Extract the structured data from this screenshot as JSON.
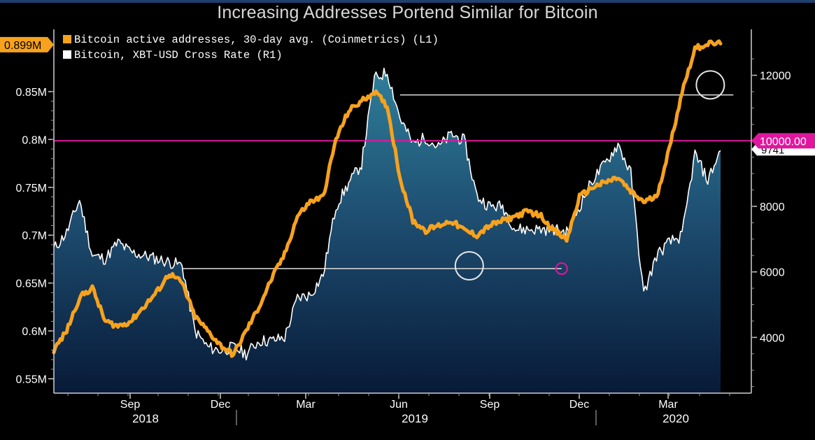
{
  "chart_data": {
    "type": "line",
    "title": "Increasing Addresses Portend Similar for Bitcoin",
    "categories_left_axis_label": "",
    "x_axis": {
      "month_ticks": [
        "Sep",
        "Dec",
        "Mar",
        "Jun",
        "Sep",
        "Dec",
        "Mar"
      ],
      "year_labels": [
        "2018",
        "2019",
        "2020"
      ]
    },
    "left_axis": {
      "ylim": [
        0.535,
        0.915
      ],
      "ticks": [
        "0.55M",
        "0.6M",
        "0.65M",
        "0.7M",
        "0.75M",
        "0.8M",
        "0.85M"
      ],
      "tick_values": [
        0.55,
        0.6,
        0.65,
        0.7,
        0.75,
        0.8,
        0.85
      ],
      "last_value_label": "0.899M"
    },
    "right_axis": {
      "ylim": [
        2300,
        13400
      ],
      "ticks": [
        "4000",
        "6000",
        "8000",
        "12000"
      ],
      "tick_values": [
        4000,
        6000,
        8000,
        12000
      ],
      "highlight_label": "10000.00",
      "last_value_label": "9741"
    },
    "series": [
      {
        "name": "Bitcoin active addresses, 30-day avg. (Coinmetrics) (L1)",
        "axis": "left",
        "color": "#f7a21d",
        "x": [
          0,
          0.5,
          1,
          1.5,
          2,
          2.5,
          3,
          3.5,
          4,
          4.5,
          5,
          5.5,
          6,
          6.5,
          7,
          7.5,
          8,
          8.5,
          9,
          9.5,
          10,
          10.5,
          11,
          11.5,
          12,
          12.5,
          13,
          13.5,
          14,
          14.5,
          15,
          15.5,
          16,
          16.5,
          17,
          17.5,
          18,
          18.5,
          19,
          19.5,
          20,
          20.5,
          21,
          21.5,
          22,
          22.5,
          23,
          23.5,
          24,
          24.5,
          25,
          25.5,
          26
        ],
        "values": [
          0.58,
          0.6,
          0.635,
          0.645,
          0.61,
          0.605,
          0.61,
          0.625,
          0.64,
          0.66,
          0.65,
          0.615,
          0.6,
          0.585,
          0.575,
          0.6,
          0.625,
          0.655,
          0.68,
          0.72,
          0.735,
          0.74,
          0.8,
          0.83,
          0.84,
          0.85,
          0.835,
          0.76,
          0.715,
          0.705,
          0.71,
          0.715,
          0.705,
          0.7,
          0.71,
          0.715,
          0.72,
          0.725,
          0.72,
          0.705,
          0.695,
          0.74,
          0.75,
          0.755,
          0.76,
          0.745,
          0.735,
          0.74,
          0.79,
          0.85,
          0.895,
          0.9,
          0.9
        ],
        "circled_points": [
          {
            "x": 16.2,
            "y": 0.668
          },
          {
            "x": 25.6,
            "y": 0.857
          }
        ]
      },
      {
        "name": "Bitcoin, XBT-USD Cross Rate (R1)",
        "axis": "right",
        "color": "#ffffff",
        "x": [
          0,
          0.5,
          1,
          1.5,
          2,
          2.5,
          3,
          3.5,
          4,
          4.5,
          5,
          5.5,
          6,
          6.5,
          7,
          7.5,
          8,
          8.5,
          9,
          9.5,
          10,
          10.5,
          11,
          11.5,
          12,
          12.5,
          13,
          13.5,
          14,
          14.5,
          15,
          15.5,
          16,
          16.5,
          17,
          17.5,
          18,
          18.5,
          19,
          19.5,
          20,
          20.5,
          21,
          21.5,
          22,
          22.5,
          23,
          23.5,
          24,
          24.5,
          25,
          25.5,
          26
        ],
        "values": [
          6700,
          7200,
          8200,
          6500,
          6400,
          6900,
          6600,
          6500,
          6400,
          6300,
          6200,
          4200,
          3700,
          3600,
          3700,
          3500,
          3900,
          3900,
          4000,
          5200,
          5300,
          5900,
          8000,
          8700,
          9300,
          11900,
          12100,
          10700,
          9900,
          10100,
          9800,
          10200,
          10000,
          8300,
          8000,
          8000,
          7300,
          7300,
          7300,
          7300,
          7200,
          8000,
          8800,
          9300,
          9900,
          9000,
          5300,
          6500,
          6900,
          7100,
          9600,
          8800,
          9700
        ],
        "horizontal_reference_lines": [
          {
            "value": 6100,
            "from_x": 5,
            "to_x": 19.8
          },
          {
            "value": 11400,
            "from_x": 13.5,
            "to_x": 26.5
          }
        ],
        "circled_point": {
          "x": 19.8,
          "y": 6100
        }
      }
    ],
    "threshold_line": {
      "axis": "right",
      "value": 10000,
      "color": "#e0179e"
    },
    "legend": [
      "Bitcoin active addresses, 30-day avg. (Coinmetrics) (L1)",
      "Bitcoin, XBT-USD Cross Rate (R1)"
    ],
    "legend_position": "top-left"
  }
}
